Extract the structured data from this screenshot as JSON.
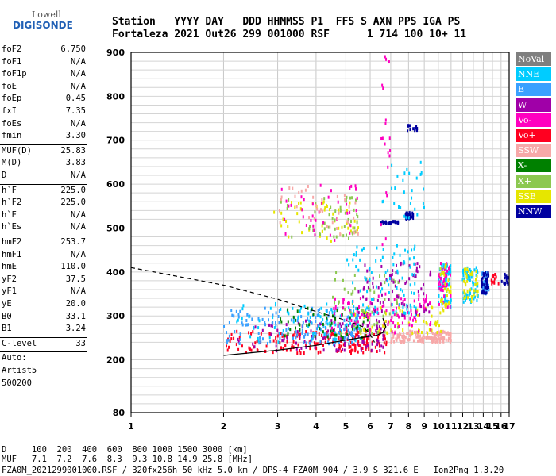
{
  "logo": {
    "line1": "Lowell",
    "line2": "DIGISONDE"
  },
  "header": {
    "line1": "Station   YYYY DAY   DDD HHMMSS P1  FFS S AXN PPS IGA PS",
    "line2": "Fortaleza 2021 Out26 299 001000 RSF      1 714 100 10+ 11"
  },
  "params": [
    {
      "k": "foF2",
      "v": "6.750"
    },
    {
      "k": "foF1",
      "v": "N/A"
    },
    {
      "k": "foF1p",
      "v": "N/A"
    },
    {
      "k": "foE",
      "v": "N/A"
    },
    {
      "k": "foEp",
      "v": "0.45"
    },
    {
      "k": "fxI",
      "v": "7.35"
    },
    {
      "k": "foEs",
      "v": "N/A"
    },
    {
      "k": "fmin",
      "v": "3.30"
    },
    {
      "sep": true
    },
    {
      "k": "MUF(D)",
      "v": "25.83"
    },
    {
      "k": "M(D)",
      "v": "3.83"
    },
    {
      "k": "D",
      "v": "N/A"
    },
    {
      "sep": true
    },
    {
      "k": "h`F",
      "v": "225.0"
    },
    {
      "k": "h`F2",
      "v": "225.0"
    },
    {
      "k": "h`E",
      "v": "N/A"
    },
    {
      "k": "h`Es",
      "v": "N/A"
    },
    {
      "sep": true
    },
    {
      "k": "hmF2",
      "v": "253.7"
    },
    {
      "k": "hmF1",
      "v": "N/A"
    },
    {
      "k": "hmE",
      "v": "110.0"
    },
    {
      "k": "yF2",
      "v": "37.5"
    },
    {
      "k": "yF1",
      "v": "N/A"
    },
    {
      "k": "yE",
      "v": "20.0"
    },
    {
      "k": "B0",
      "v": "33.1"
    },
    {
      "k": "B1",
      "v": "3.24"
    },
    {
      "sep": true
    },
    {
      "k": "C-level",
      "v": "33"
    },
    {
      "sep": true
    },
    {
      "t": "Auto:"
    },
    {
      "t": "Artist5"
    },
    {
      "t": "500200"
    }
  ],
  "legend": [
    {
      "label": "NoVal",
      "color": "#7f7f7f"
    },
    {
      "label": "NNE",
      "color": "#00ccff"
    },
    {
      "label": "E",
      "color": "#3aa0ff"
    },
    {
      "label": "W",
      "color": "#a000a8"
    },
    {
      "label": "Vo-",
      "color": "#ff00c0"
    },
    {
      "label": "Vo+",
      "color": "#ff0020"
    },
    {
      "label": "SSW",
      "color": "#f7a8a8"
    },
    {
      "label": "X-",
      "color": "#008000"
    },
    {
      "label": "X+",
      "color": "#8cc850"
    },
    {
      "label": "SSE",
      "color": "#e6e600"
    },
    {
      "label": "NNW",
      "color": "#0000a0"
    }
  ],
  "footer": {
    "line1": "D     100  200  400  600  800 1000 1500 3000 [km]",
    "line2": "MUF   7.1  7.2  7.6  8.3  9.3 10.8 14.9 25.8 [MHz]",
    "line3": "FZA0M_2021299001000.RSF / 320fx256h 50 kHz 5.0 km / DPS-4 FZA0M 904 / 3.9 S 321.6 E   Ion2Png 1.3.20"
  },
  "chart_data": {
    "type": "scatter",
    "xlim": [
      1,
      17
    ],
    "ylim": [
      80,
      900
    ],
    "x_scale": "log",
    "x_ticks": [
      1,
      2,
      3,
      4,
      5,
      6,
      7,
      8,
      9,
      10,
      11,
      12,
      13,
      14,
      15,
      16,
      17
    ],
    "y_ticks": [
      80,
      200,
      300,
      400,
      500,
      600,
      700,
      800,
      900
    ],
    "grid": true,
    "legend_position": "right",
    "clusters": [
      {
        "label": "Vo+",
        "f": [
          2.0,
          6.8
        ],
        "h": [
          215,
          265
        ],
        "n": 200
      },
      {
        "label": "W",
        "f": [
          2.2,
          6.8
        ],
        "h": [
          220,
          290
        ],
        "n": 110
      },
      {
        "label": "E",
        "f": [
          2.0,
          5.5
        ],
        "h": [
          235,
          320
        ],
        "n": 160
      },
      {
        "label": "NNE",
        "f": [
          2.2,
          5.8
        ],
        "h": [
          240,
          330
        ],
        "n": 80
      },
      {
        "label": "X-",
        "f": [
          3.0,
          6.0
        ],
        "h": [
          250,
          320
        ],
        "n": 60
      },
      {
        "label": "SSW",
        "f": [
          7.0,
          11.0
        ],
        "h": [
          240,
          265
        ],
        "n": 150
      },
      {
        "label": "SSE",
        "f": [
          5.0,
          10.5
        ],
        "h": [
          260,
          320
        ],
        "n": 70
      },
      {
        "label": "X+",
        "f": [
          4.5,
          7.5
        ],
        "h": [
          260,
          400
        ],
        "n": 60
      },
      {
        "label": "Vo-",
        "f": [
          4.5,
          9.5
        ],
        "h": [
          260,
          350
        ],
        "n": 110
      },
      {
        "label": "W",
        "f": [
          5.5,
          9.5
        ],
        "h": [
          300,
          420
        ],
        "n": 80
      },
      {
        "label": "NNE",
        "f": [
          5.0,
          8.5
        ],
        "h": [
          300,
          460
        ],
        "n": 90
      },
      {
        "label": "SSE",
        "f": [
          2.9,
          5.5
        ],
        "h": [
          470,
          560
        ],
        "n": 50
      },
      {
        "label": "X+",
        "f": [
          3.0,
          5.5
        ],
        "h": [
          470,
          580
        ],
        "n": 50
      },
      {
        "label": "Vo-",
        "f": [
          3.0,
          5.5
        ],
        "h": [
          470,
          600
        ],
        "n": 40
      },
      {
        "label": "SSW",
        "f": [
          3.0,
          5.5
        ],
        "h": [
          480,
          600
        ],
        "n": 40
      },
      {
        "label": "NNE",
        "f": [
          10.0,
          11.0
        ],
        "h": [
          320,
          420
        ],
        "n": 70
      },
      {
        "label": "Vo-",
        "f": [
          10.0,
          11.0
        ],
        "h": [
          320,
          420
        ],
        "n": 40
      },
      {
        "label": "SSE",
        "f": [
          10.0,
          11.0
        ],
        "h": [
          320,
          420
        ],
        "n": 30
      },
      {
        "label": "NNE",
        "f": [
          12.0,
          13.5
        ],
        "h": [
          330,
          410
        ],
        "n": 60
      },
      {
        "label": "SSE",
        "f": [
          12.0,
          13.5
        ],
        "h": [
          330,
          410
        ],
        "n": 40
      },
      {
        "label": "E",
        "f": [
          13.8,
          14.6
        ],
        "h": [
          350,
          400
        ],
        "n": 50
      },
      {
        "label": "NNW",
        "f": [
          13.8,
          14.6
        ],
        "h": [
          350,
          400
        ],
        "n": 40
      },
      {
        "label": "Vo+",
        "f": [
          14.8,
          15.8
        ],
        "h": [
          370,
          395
        ],
        "n": 12
      },
      {
        "label": "NNW",
        "f": [
          15.9,
          16.9
        ],
        "h": [
          370,
          395
        ],
        "n": 14
      },
      {
        "label": "NNW",
        "f": [
          6.5,
          7.4
        ],
        "h": [
          510,
          515
        ],
        "n": 30
      },
      {
        "label": "NNW",
        "f": [
          7.8,
          8.3
        ],
        "h": [
          520,
          535
        ],
        "n": 30
      },
      {
        "label": "NNW",
        "f": [
          7.9,
          8.6
        ],
        "h": [
          720,
          735
        ],
        "n": 14
      },
      {
        "label": "NNE",
        "f": [
          6.4,
          9.0
        ],
        "h": [
          520,
          650
        ],
        "n": 30
      },
      {
        "label": "Vo-",
        "f": [
          6.5,
          7.0
        ],
        "h": [
          330,
          900
        ],
        "n": 20
      }
    ],
    "profile": [
      [
        2.0,
        210
      ],
      [
        3.0,
        222
      ],
      [
        4.0,
        233
      ],
      [
        5.0,
        245
      ],
      [
        5.8,
        252
      ],
      [
        6.3,
        256
      ],
      [
        6.6,
        262
      ],
      [
        6.75,
        275
      ],
      [
        6.6,
        295
      ]
    ],
    "dashed_profile": [
      [
        1.0,
        410
      ],
      [
        2.0,
        370
      ],
      [
        3.0,
        338
      ],
      [
        4.0,
        310
      ],
      [
        5.0,
        290
      ],
      [
        5.7,
        275
      ],
      [
        6.0,
        258
      ],
      [
        6.2,
        240
      ]
    ]
  }
}
